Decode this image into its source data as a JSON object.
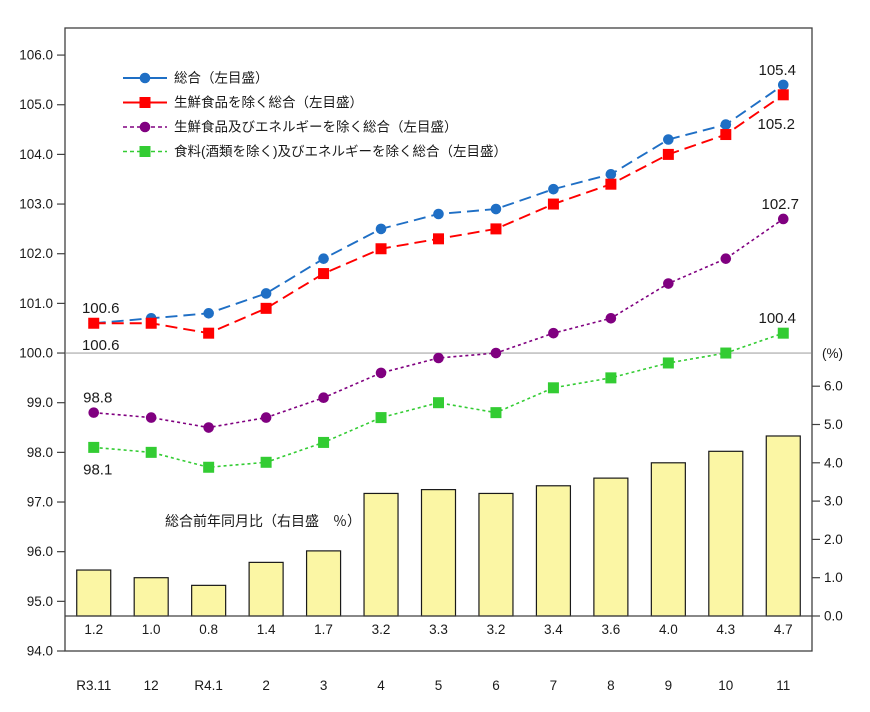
{
  "chart_data": {
    "type": "line+bar",
    "title": "",
    "categories": [
      "R3.11",
      "12",
      "R4.1",
      "2",
      "3",
      "4",
      "5",
      "6",
      "7",
      "8",
      "9",
      "10",
      "11"
    ],
    "series": [
      {
        "key": "sogo-total",
        "name": "総合（左目盛）",
        "axis": "left",
        "color": "#1F6FC5",
        "marker": "circle",
        "dash": "long",
        "values": [
          100.6,
          100.7,
          100.8,
          101.2,
          101.9,
          102.5,
          102.8,
          102.9,
          103.3,
          103.6,
          104.3,
          104.6,
          105.4
        ]
      },
      {
        "key": "ex-fresh-food",
        "name": "生鮮食品を除く総合（左目盛）",
        "axis": "left",
        "color": "#FF0000",
        "marker": "square",
        "dash": "long",
        "values": [
          100.6,
          100.6,
          100.4,
          100.9,
          101.6,
          102.1,
          102.3,
          102.5,
          103.0,
          103.4,
          104.0,
          104.4,
          105.2
        ]
      },
      {
        "key": "ex-fresh-food-energy",
        "name": "生鮮食品及びエネルギーを除く総合（左目盛）",
        "axis": "left",
        "color": "#800080",
        "marker": "circle",
        "dash": "dot",
        "values": [
          98.8,
          98.7,
          98.5,
          98.7,
          99.1,
          99.6,
          99.9,
          100.0,
          100.4,
          100.7,
          101.4,
          101.9,
          102.7
        ]
      },
      {
        "key": "ex-food-energy",
        "name": "食料(酒類を除く)及びエネルギーを除く総合（左目盛）",
        "axis": "left",
        "color": "#33CC33",
        "marker": "square",
        "dash": "dot",
        "values": [
          98.1,
          98.0,
          97.7,
          97.8,
          98.2,
          98.7,
          99.0,
          98.8,
          99.3,
          99.5,
          99.8,
          100.0,
          100.4
        ]
      }
    ],
    "bar_series": {
      "key": "yoy-change",
      "note": "総合前年同月比（右目盛　％）",
      "axis": "right",
      "fill": "#FBF6A4",
      "border": "#1a1a1a",
      "values": [
        1.2,
        1.0,
        0.8,
        1.4,
        1.7,
        3.2,
        3.3,
        3.2,
        3.4,
        3.6,
        4.0,
        4.3,
        4.7
      ]
    },
    "left_axis": {
      "min": 94.0,
      "max": 106.0,
      "step": 1.0
    },
    "right_axis": {
      "min": 0.0,
      "max": 6.0,
      "step": 1.0,
      "unit": "(%)"
    },
    "reference_line_value": 100.0,
    "grid": "off",
    "legend_position": "top-left",
    "annotations": [
      {
        "si": 0,
        "i": 0,
        "text": "100.6",
        "place": "above",
        "dx": 7
      },
      {
        "si": 1,
        "i": 0,
        "text": "100.6",
        "place": "below",
        "dx": 7
      },
      {
        "si": 2,
        "i": 0,
        "text": "98.8",
        "place": "above",
        "dx": 4
      },
      {
        "si": 3,
        "i": 0,
        "text": "98.1",
        "place": "below",
        "dx": 4
      },
      {
        "si": 0,
        "i": 12,
        "text": "105.4",
        "place": "above",
        "dx": -6
      },
      {
        "si": 1,
        "i": 12,
        "text": "105.2",
        "place": "below2",
        "dx": -7
      },
      {
        "si": 2,
        "i": 12,
        "text": "102.7",
        "place": "above",
        "dx": -3
      },
      {
        "si": 3,
        "i": 12,
        "text": "100.4",
        "place": "above",
        "dx": -6
      }
    ],
    "colors": {
      "axis": "#404040",
      "reference_line": "#A6A6A6",
      "text": "#1a1a1a"
    }
  }
}
